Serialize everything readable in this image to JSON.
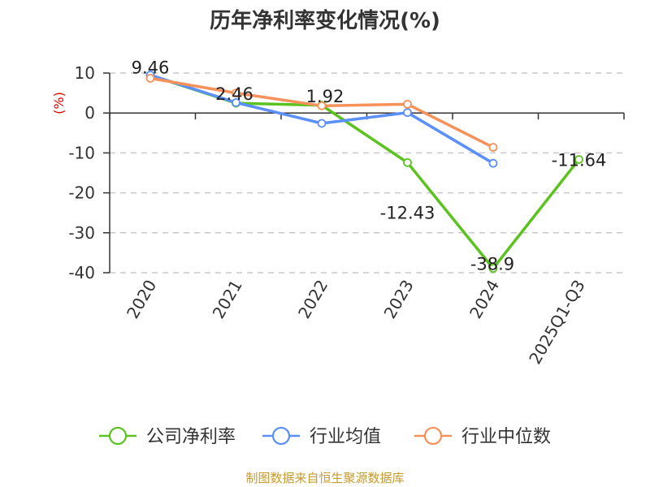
{
  "title": "历年净利率变化情况(%)",
  "source": "制图数据来自恒生聚源数据库",
  "colors": {
    "company": "#5cc21f",
    "industry_avg": "#5b8ff9",
    "industry_median": "#f7915a",
    "unit": "#e00000",
    "source": "#c79a2c",
    "axis": "#333333"
  },
  "chart_data": {
    "type": "line",
    "title": "历年净利率变化情况(%)",
    "ylabel": "(%)",
    "xlabel": "",
    "categories": [
      "2020",
      "2021",
      "2022",
      "2023",
      "2024",
      "2025Q1-Q3"
    ],
    "ylim": [
      -40,
      10
    ],
    "yticks": [
      10,
      0,
      -10,
      -20,
      -30,
      -40
    ],
    "grid": true,
    "legend": "bottom",
    "series": [
      {
        "name": "公司净利率",
        "key": "company",
        "values": [
          9.46,
          2.46,
          1.92,
          -12.43,
          -38.9,
          -11.64
        ],
        "labels": [
          "9.46",
          "2.46",
          "1.92",
          "-12.43",
          "-38.9",
          "-11.64"
        ]
      },
      {
        "name": "行业均值",
        "key": "industry_avg",
        "values": [
          9.5,
          2.6,
          -2.6,
          0.1,
          -12.6,
          null
        ]
      },
      {
        "name": "行业中位数",
        "key": "industry_median",
        "values": [
          8.7,
          5.0,
          1.8,
          2.2,
          -8.6,
          null
        ]
      }
    ]
  }
}
